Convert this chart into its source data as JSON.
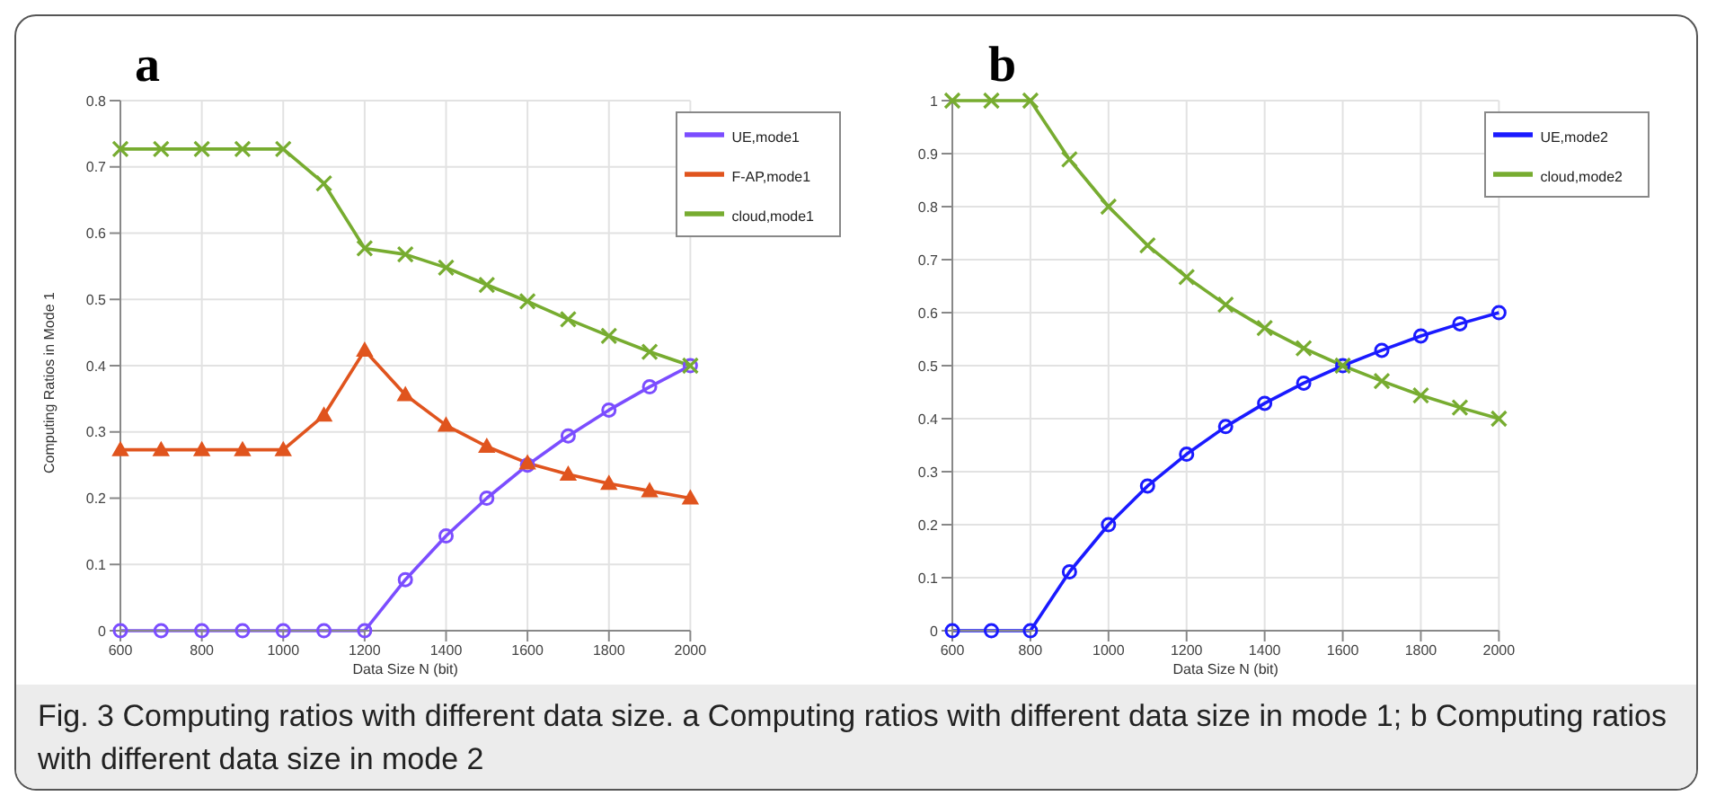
{
  "chart_data": [
    {
      "type": "line",
      "title": "a",
      "xlabel": "Data Size N (bit)",
      "ylabel": "Computing Ratios in Mode 1",
      "x": [
        600,
        700,
        800,
        900,
        1000,
        1100,
        1200,
        1300,
        1400,
        1500,
        1600,
        1700,
        1800,
        1900,
        2000
      ],
      "xlim": [
        600,
        2000
      ],
      "xticks": [
        600,
        800,
        1000,
        1200,
        1400,
        1600,
        1800,
        2000
      ],
      "ylim": [
        0,
        0.8
      ],
      "yticks": [
        0,
        0.1,
        0.2,
        0.3,
        0.4,
        0.5,
        0.6,
        0.7,
        0.8
      ],
      "grid": true,
      "legend": "top right",
      "line_style": "solid",
      "series": [
        {
          "name": "UE,mode1",
          "color": "#7b4dff",
          "marker": "circle",
          "values": [
            0,
            0,
            0,
            0,
            0,
            0,
            0,
            0.077,
            0.143,
            0.2,
            0.25,
            0.294,
            0.333,
            0.368,
            0.4
          ]
        },
        {
          "name": "F-AP,mode1",
          "color": "#e0541e",
          "marker": "triangle",
          "values": [
            0.273,
            0.273,
            0.273,
            0.273,
            0.273,
            0.325,
            0.423,
            0.356,
            0.31,
            0.278,
            0.253,
            0.236,
            0.222,
            0.211,
            0.2
          ]
        },
        {
          "name": "cloud,mode1",
          "color": "#77ac30",
          "marker": "cross",
          "values": [
            0.727,
            0.727,
            0.727,
            0.727,
            0.727,
            0.675,
            0.577,
            0.568,
            0.548,
            0.522,
            0.497,
            0.47,
            0.445,
            0.421,
            0.4
          ]
        }
      ],
      "annotations": [
        "Fig. 3  Computing ratios with different data size. a Computing ratios with different data size in mode 1; b Computing ratios with different data size in mode 2"
      ]
    },
    {
      "type": "line",
      "title": "b",
      "xlabel": "Data Size N (bit)",
      "x": [
        600,
        700,
        800,
        900,
        1000,
        1100,
        1200,
        1300,
        1400,
        1500,
        1600,
        1700,
        1800,
        1900,
        2000
      ],
      "xlim": [
        600,
        2000
      ],
      "xticks": [
        600,
        800,
        1000,
        1200,
        1400,
        1600,
        1800,
        2000
      ],
      "ylim": [
        0,
        1
      ],
      "yticks": [
        0,
        0.1,
        0.2,
        0.3,
        0.4,
        0.5,
        0.6,
        0.7,
        0.8,
        0.9,
        1
      ],
      "grid": true,
      "legend": "top right",
      "line_style": "solid",
      "series": [
        {
          "name": "UE,mode2",
          "color": "#1a1aff",
          "marker": "circle",
          "values": [
            0,
            0,
            0,
            0.111,
            0.2,
            0.273,
            0.333,
            0.385,
            0.429,
            0.467,
            0.5,
            0.529,
            0.556,
            0.579,
            0.6
          ]
        },
        {
          "name": "cloud,mode2",
          "color": "#77ac30",
          "marker": "cross",
          "values": [
            1,
            1,
            1,
            0.889,
            0.8,
            0.727,
            0.667,
            0.615,
            0.571,
            0.533,
            0.5,
            0.471,
            0.444,
            0.421,
            0.4
          ]
        }
      ]
    }
  ]
}
